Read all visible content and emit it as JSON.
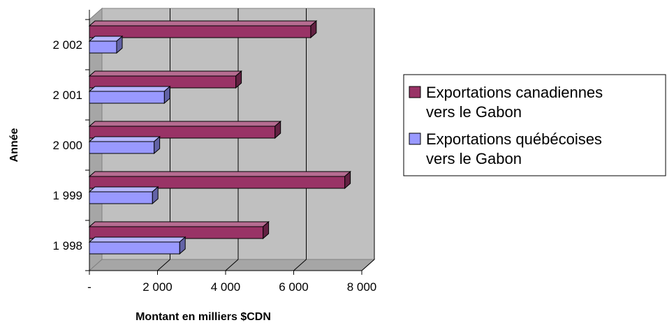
{
  "chart_data": {
    "type": "bar",
    "orientation": "horizontal",
    "three_d": true,
    "categories": [
      "1 998",
      "1 999",
      "2 000",
      "2 001",
      "2 002"
    ],
    "series": [
      {
        "name": "Exportations canadiennes vers le Gabon",
        "values": [
          5100,
          7500,
          5450,
          4300,
          6500
        ],
        "color": "#993366"
      },
      {
        "name": "Exportations québécoises vers le Gabon",
        "values": [
          2650,
          1850,
          1900,
          2200,
          800
        ],
        "color": "#9999ff"
      }
    ],
    "xlabel": "Montant en milliers $CDN",
    "ylabel": "Année",
    "xlim": [
      0,
      8000
    ],
    "x_ticks": [
      0,
      2000,
      4000,
      6000,
      8000
    ],
    "x_tick_labels": [
      "-",
      "2 000",
      "4 000",
      "6 000",
      "8 000"
    ],
    "grid": true,
    "plot_background": "#c0c0c0",
    "legend_position": "right",
    "legend": [
      {
        "lines": [
          "Exportations canadiennes",
          "vers le Gabon"
        ]
      },
      {
        "lines": [
          "Exportations québécoises",
          "vers le Gabon"
        ]
      }
    ]
  }
}
